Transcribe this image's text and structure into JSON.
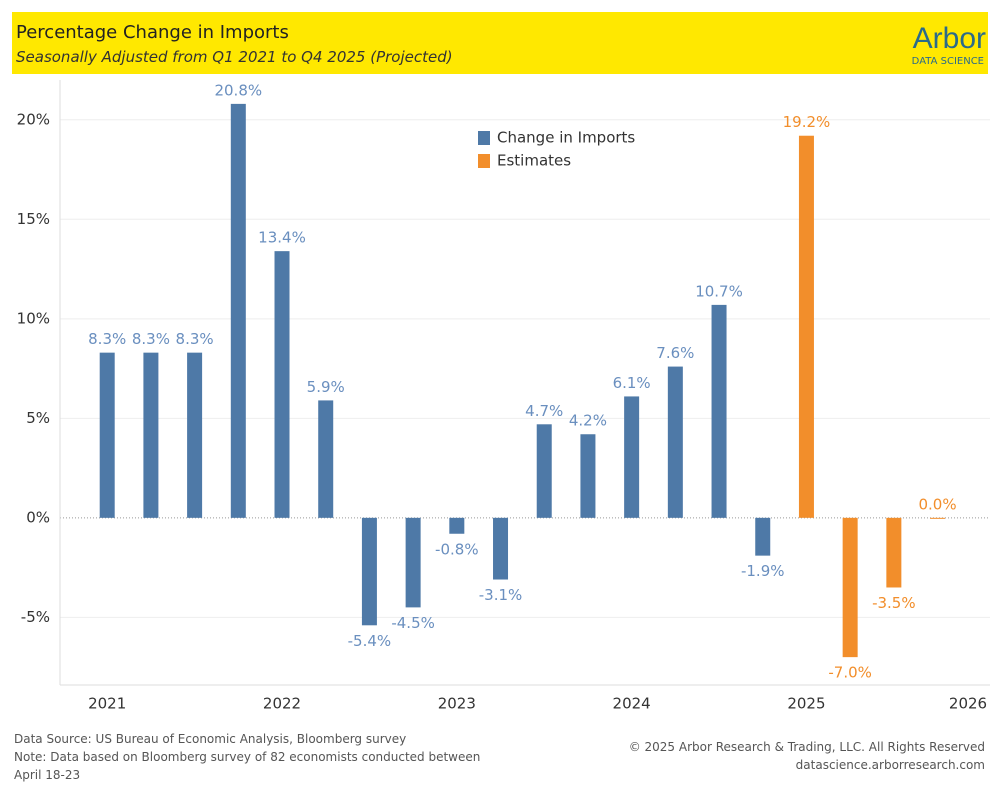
{
  "header": {
    "title": "Percentage Change in Imports",
    "subtitle": "Seasonally Adjusted from Q1 2021 to Q4 2025 (Projected)",
    "logo": "Arbor",
    "logo_sub": "DATA SCIENCE"
  },
  "chart_data": {
    "type": "bar",
    "x": [
      2021,
      2021.25,
      2021.5,
      2021.75,
      2022,
      2022.25,
      2022.5,
      2022.75,
      2023,
      2023.25,
      2023.5,
      2023.75,
      2024,
      2024.25,
      2024.5,
      2024.75,
      2025,
      2025.25,
      2025.5,
      2025.75
    ],
    "series": [
      {
        "name": "Change in Imports",
        "color": "#4e79a7",
        "values": [
          8.3,
          8.3,
          8.3,
          20.8,
          13.4,
          5.9,
          -5.4,
          -4.5,
          -0.8,
          -3.1,
          4.7,
          4.2,
          6.1,
          7.6,
          10.7,
          -1.9,
          null,
          null,
          null,
          null
        ],
        "value_labels": [
          "8.3%",
          "8.3%",
          "8.3%",
          "20.8%",
          "13.4%",
          "5.9%",
          "-5.4%",
          "-4.5%",
          "-0.8%",
          "-3.1%",
          "4.7%",
          "4.2%",
          "6.1%",
          "7.6%",
          "10.7%",
          "-1.9%",
          null,
          null,
          null,
          null
        ]
      },
      {
        "name": "Estimates",
        "color": "#f28e2b",
        "values": [
          null,
          null,
          null,
          null,
          null,
          null,
          null,
          null,
          null,
          null,
          null,
          null,
          null,
          null,
          null,
          null,
          19.2,
          -7.0,
          -3.5,
          0.0
        ],
        "value_labels": [
          null,
          null,
          null,
          null,
          null,
          null,
          null,
          null,
          null,
          null,
          null,
          null,
          null,
          null,
          null,
          null,
          "19.2%",
          "-7.0%",
          "-3.5%",
          "0.0%"
        ]
      }
    ],
    "xlim": [
      2020.73,
      2026.05
    ],
    "xticks": [
      2021,
      2022,
      2023,
      2024,
      2025,
      2026
    ],
    "ylim": [
      -8.4,
      22
    ],
    "yticks": [
      {
        "value": -5,
        "label": "-5%"
      },
      {
        "value": 0,
        "label": "0%"
      },
      {
        "value": 5,
        "label": "5%"
      },
      {
        "value": 10,
        "label": "10%"
      },
      {
        "value": 15,
        "label": "15%"
      },
      {
        "value": 20,
        "label": "20%"
      }
    ],
    "grid": true
  },
  "footer": {
    "source": "Data Source: US Bureau of Economic Analysis, Bloomberg survey",
    "note": "Note: Data based on Bloomberg survey of 82 economists conducted between April 18-23",
    "copyright": "© 2025 Arbor Research & Trading, LLC. All Rights Reserved",
    "website": "datascience.arborresearch.com"
  }
}
